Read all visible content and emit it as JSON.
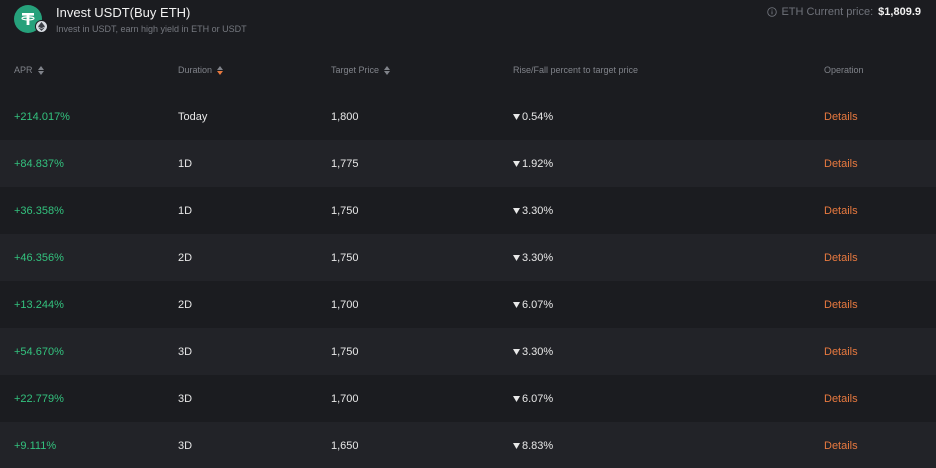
{
  "header": {
    "title": "Invest USDT(Buy ETH)",
    "subtitle": "Invest in USDT, earn high yield in ETH or USDT",
    "price_label": "ETH Current price:",
    "price_value": "$1,809.9",
    "logo_icon": "tether-icon",
    "badge_icon": "ethereum-icon"
  },
  "table": {
    "columns": {
      "apr": "APR",
      "duration": "Duration",
      "target_price": "Target Price",
      "rise_fall": "Rise/Fall percent to target price",
      "operation": "Operation"
    },
    "duration_sort_active_color": "#e8793f",
    "rows": [
      {
        "apr": "+214.017%",
        "duration": "Today",
        "target_price": "1,800",
        "percent": "0.54%",
        "direction": "down",
        "operation": "Details"
      },
      {
        "apr": "+84.837%",
        "duration": "1D",
        "target_price": "1,775",
        "percent": "1.92%",
        "direction": "down",
        "operation": "Details"
      },
      {
        "apr": "+36.358%",
        "duration": "1D",
        "target_price": "1,750",
        "percent": "3.30%",
        "direction": "down",
        "operation": "Details"
      },
      {
        "apr": "+46.356%",
        "duration": "2D",
        "target_price": "1,750",
        "percent": "3.30%",
        "direction": "down",
        "operation": "Details"
      },
      {
        "apr": "+13.244%",
        "duration": "2D",
        "target_price": "1,700",
        "percent": "6.07%",
        "direction": "down",
        "operation": "Details"
      },
      {
        "apr": "+54.670%",
        "duration": "3D",
        "target_price": "1,750",
        "percent": "3.30%",
        "direction": "down",
        "operation": "Details"
      },
      {
        "apr": "+22.779%",
        "duration": "3D",
        "target_price": "1,700",
        "percent": "6.07%",
        "direction": "down",
        "operation": "Details"
      },
      {
        "apr": "+9.111%",
        "duration": "3D",
        "target_price": "1,650",
        "percent": "8.83%",
        "direction": "down",
        "operation": "Details"
      }
    ]
  },
  "colors": {
    "background": "#1b1c20",
    "row_alt": "#222328",
    "apr_green": "#33c27e",
    "accent_orange": "#e8793f",
    "logo_green": "#26a17b"
  }
}
